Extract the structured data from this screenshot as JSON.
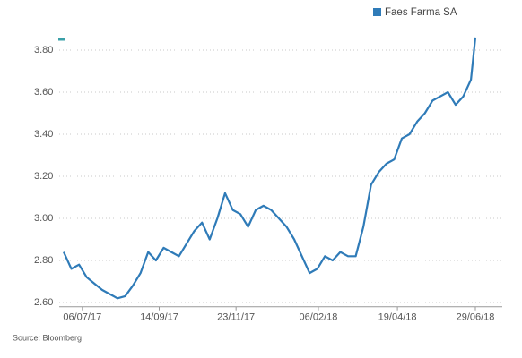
{
  "chart_data": {
    "type": "line",
    "source": "Source: Bloomberg",
    "x": [
      "2017-06-19",
      "2017-06-26",
      "2017-07-03",
      "2017-07-10",
      "2017-07-17",
      "2017-07-24",
      "2017-07-31",
      "2017-08-07",
      "2017-08-14",
      "2017-08-21",
      "2017-08-28",
      "2017-09-04",
      "2017-09-11",
      "2017-09-18",
      "2017-09-25",
      "2017-10-02",
      "2017-10-09",
      "2017-10-16",
      "2017-10-23",
      "2017-10-30",
      "2017-11-06",
      "2017-11-13",
      "2017-11-20",
      "2017-11-27",
      "2017-12-04",
      "2017-12-11",
      "2017-12-18",
      "2017-12-25",
      "2018-01-01",
      "2018-01-08",
      "2018-01-15",
      "2018-01-22",
      "2018-01-29",
      "2018-02-05",
      "2018-02-12",
      "2018-02-19",
      "2018-02-26",
      "2018-03-05",
      "2018-03-12",
      "2018-03-19",
      "2018-03-26",
      "2018-04-02",
      "2018-04-09",
      "2018-04-16",
      "2018-04-23",
      "2018-04-30",
      "2018-05-07",
      "2018-05-14",
      "2018-05-21",
      "2018-05-28",
      "2018-06-04",
      "2018-06-11",
      "2018-06-18",
      "2018-06-25",
      "2018-06-29"
    ],
    "series": [
      {
        "name": "Faes Farma SA",
        "color": "#2f7bb8",
        "values": [
          2.84,
          2.76,
          2.78,
          2.72,
          2.69,
          2.66,
          2.64,
          2.62,
          2.63,
          2.68,
          2.74,
          2.84,
          2.8,
          2.86,
          2.84,
          2.82,
          2.88,
          2.94,
          2.98,
          2.9,
          3.0,
          3.12,
          3.04,
          3.02,
          2.96,
          3.04,
          3.06,
          3.04,
          3.0,
          2.96,
          2.9,
          2.82,
          2.74,
          2.76,
          2.82,
          2.8,
          2.84,
          2.82,
          2.82,
          2.96,
          3.16,
          3.22,
          3.26,
          3.28,
          3.38,
          3.4,
          3.46,
          3.5,
          3.56,
          3.58,
          3.6,
          3.54,
          3.58,
          3.66,
          3.86
        ]
      }
    ],
    "xlim": [
      "2017-06-19",
      "2018-06-29"
    ],
    "xticks": [
      {
        "value": "2017-07-06",
        "label": "06/07/17"
      },
      {
        "value": "2017-09-14",
        "label": "14/09/17"
      },
      {
        "value": "2017-11-23",
        "label": "23/11/17"
      },
      {
        "value": "2018-02-06",
        "label": "06/02/18"
      },
      {
        "value": "2018-04-19",
        "label": "19/04/18"
      },
      {
        "value": "2018-06-29",
        "label": "29/06/18"
      }
    ],
    "ylim": [
      2.58,
      3.9
    ],
    "yticks": [
      {
        "value": 2.6,
        "label": "2.60"
      },
      {
        "value": 2.8,
        "label": "2.80"
      },
      {
        "value": 3.0,
        "label": "3.00"
      },
      {
        "value": 3.2,
        "label": "3.20"
      },
      {
        "value": 3.4,
        "label": "3.40"
      },
      {
        "value": 3.6,
        "label": "3.60"
      },
      {
        "value": 3.8,
        "label": "3.80"
      }
    ],
    "grid": true,
    "legend": "top-right"
  }
}
